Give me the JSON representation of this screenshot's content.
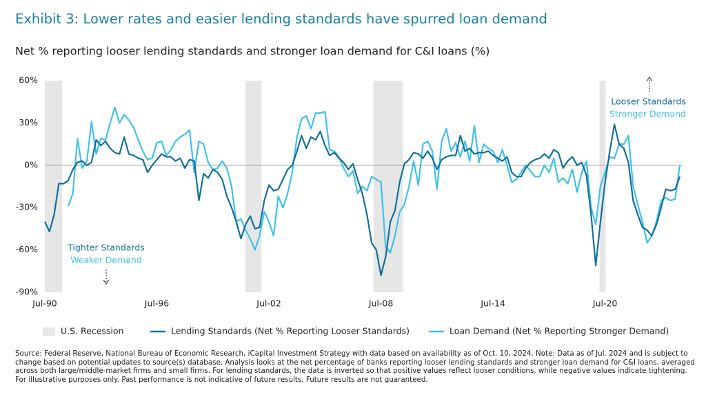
{
  "title": "Exhibit 3: Lower rates and easier lending standards have spurred loan demand",
  "chart_data": {
    "type": "line",
    "title": "Net % reporting looser lending standards and stronger loan demand for C&I loans  (%)",
    "categories": [
      "Jul-90",
      null,
      null,
      null,
      null,
      null,
      null,
      null,
      null,
      null,
      null,
      null,
      null,
      null,
      null,
      null,
      null,
      null,
      null,
      null,
      null,
      null,
      null,
      null,
      "Jul-96",
      null,
      null,
      null,
      null,
      null,
      null,
      null,
      null,
      null,
      null,
      null,
      null,
      null,
      null,
      null,
      null,
      null,
      null,
      null,
      null,
      null,
      null,
      null,
      "Jul-02",
      null,
      null,
      null,
      null,
      null,
      null,
      null,
      null,
      null,
      null,
      null,
      null,
      null,
      null,
      null,
      null,
      null,
      null,
      null,
      null,
      null,
      null,
      null,
      "Jul-08",
      null,
      null,
      null,
      null,
      null,
      null,
      null,
      null,
      null,
      null,
      null,
      null,
      null,
      null,
      null,
      null,
      null,
      null,
      null,
      null,
      null,
      null,
      null,
      "Jul-14",
      null,
      null,
      null,
      null,
      null,
      null,
      null,
      null,
      null,
      null,
      null,
      null,
      null,
      null,
      null,
      null,
      null,
      null,
      null,
      null,
      null,
      null,
      null,
      "Jul-20",
      null,
      null,
      null,
      null,
      null,
      null,
      null,
      null,
      null,
      null,
      null,
      null,
      null,
      null,
      null,
      null
    ],
    "series": [
      {
        "name": "Lending Standards (Net % Reporting Looser Standards)",
        "color": "#10709a",
        "values": [
          -40,
          -47,
          -35,
          -13,
          -13,
          -11,
          -3,
          2,
          3,
          0,
          2,
          18,
          14,
          17,
          12,
          9,
          8,
          20,
          8,
          7,
          5,
          4,
          -5,
          0,
          4,
          8,
          6,
          6,
          3,
          5,
          -2,
          4,
          3,
          -25,
          -6,
          -9,
          -3,
          -5,
          -10,
          -22,
          -30,
          -40,
          -52,
          -42,
          -36,
          -45,
          -44,
          -25,
          -14,
          -18,
          -17,
          -10,
          -3,
          0,
          10,
          21,
          12,
          20,
          18,
          24,
          14,
          7,
          9,
          5,
          2,
          -3,
          1,
          -10,
          -20,
          -35,
          -55,
          -60,
          -78,
          -65,
          -40,
          -32,
          -12,
          1,
          4,
          9,
          8,
          5,
          10,
          5,
          -3,
          4,
          6,
          7,
          7,
          21,
          10,
          12,
          8,
          9,
          9,
          10,
          7,
          5,
          3,
          6,
          -5,
          -8,
          -8,
          -2,
          2,
          4,
          5,
          8,
          5,
          11,
          9,
          -2,
          3,
          6,
          0,
          2,
          -7,
          -35,
          -71,
          -40,
          -12,
          10,
          29,
          15,
          12,
          2,
          -25,
          -35,
          -44,
          -46,
          -50,
          -42,
          -30,
          -17,
          -18,
          -17,
          -8
        ]
      },
      {
        "name": "Loan Demand (Net % Reporting Stronger Demand)",
        "color": "#3fc0ea",
        "values": [
          null,
          null,
          null,
          null,
          null,
          -29,
          -20,
          19,
          -2,
          3,
          31,
          8,
          19,
          18,
          30,
          41,
          30,
          36,
          32,
          27,
          18,
          10,
          4,
          5,
          16,
          17,
          7,
          11,
          17,
          20,
          22,
          25,
          -5,
          17,
          15,
          2,
          -3,
          -2,
          3,
          -2,
          -15,
          -40,
          -38,
          -46,
          -52,
          -60,
          -50,
          -33,
          -40,
          -50,
          -22,
          -30,
          -20,
          -5,
          20,
          33,
          35,
          26,
          37,
          37,
          38,
          11,
          10,
          6,
          -2,
          -8,
          -4,
          -20,
          -15,
          -18,
          -8,
          -10,
          -12,
          -58,
          -62,
          -50,
          -33,
          -28,
          -15,
          3,
          -14,
          15,
          17,
          10,
          -17,
          17,
          26,
          10,
          16,
          6,
          17,
          3,
          28,
          2,
          15,
          12,
          10,
          2,
          11,
          0,
          -12,
          -10,
          -5,
          0,
          -4,
          -8,
          -8,
          0,
          -5,
          5,
          -12,
          -9,
          -13,
          -3,
          -19,
          -5,
          3,
          -30,
          -42,
          -15,
          -5,
          6,
          5,
          15,
          15,
          21,
          -15,
          -28,
          -40,
          -55,
          -50,
          -40,
          -25,
          -23,
          -25,
          -24,
          0
        ]
      }
    ],
    "recessions": {
      "name": "U.S. Recession",
      "color": "#e6e6e6",
      "spans": [
        [
          0,
          3.7
        ],
        [
          43,
          46.4
        ],
        [
          70.4,
          76.7
        ],
        [
          118.8,
          120.1
        ]
      ]
    },
    "ylim": [
      -90,
      60
    ],
    "yticks": [
      {
        "value": 60,
        "label": "60%"
      },
      {
        "value": 30,
        "label": "30%"
      },
      {
        "value": 0,
        "label": "0%"
      },
      {
        "value": -30,
        "label": "-30%"
      },
      {
        "value": -60,
        "label": "-60%"
      },
      {
        "value": -90,
        "label": "-90%"
      }
    ],
    "zero_line": true,
    "annotations": [
      "Looser Standards",
      "Stronger Demand",
      "Tighter Standards",
      "Weaker Demand"
    ]
  },
  "source": "Source: Federal Reserve, National Bureau of Economic Research, iCapital Investment Strategy with data based on availability as of Oct. 10, 2024. Note: Data as of Jul. 2024 and is subject to change based on potential updates to source(s) database. Analysis looks at the net percentage of banks reporting looser lending standards and stronger loan demand for C&I loans, averaged across both large/middle-market firms and small firms. For lending standards, the data is inverted so that positive values reflect looser conditions, while negative values indicate tightening. For illustrative purposes only. Past performance is not indicative of future results. Future results are not guaranteed."
}
